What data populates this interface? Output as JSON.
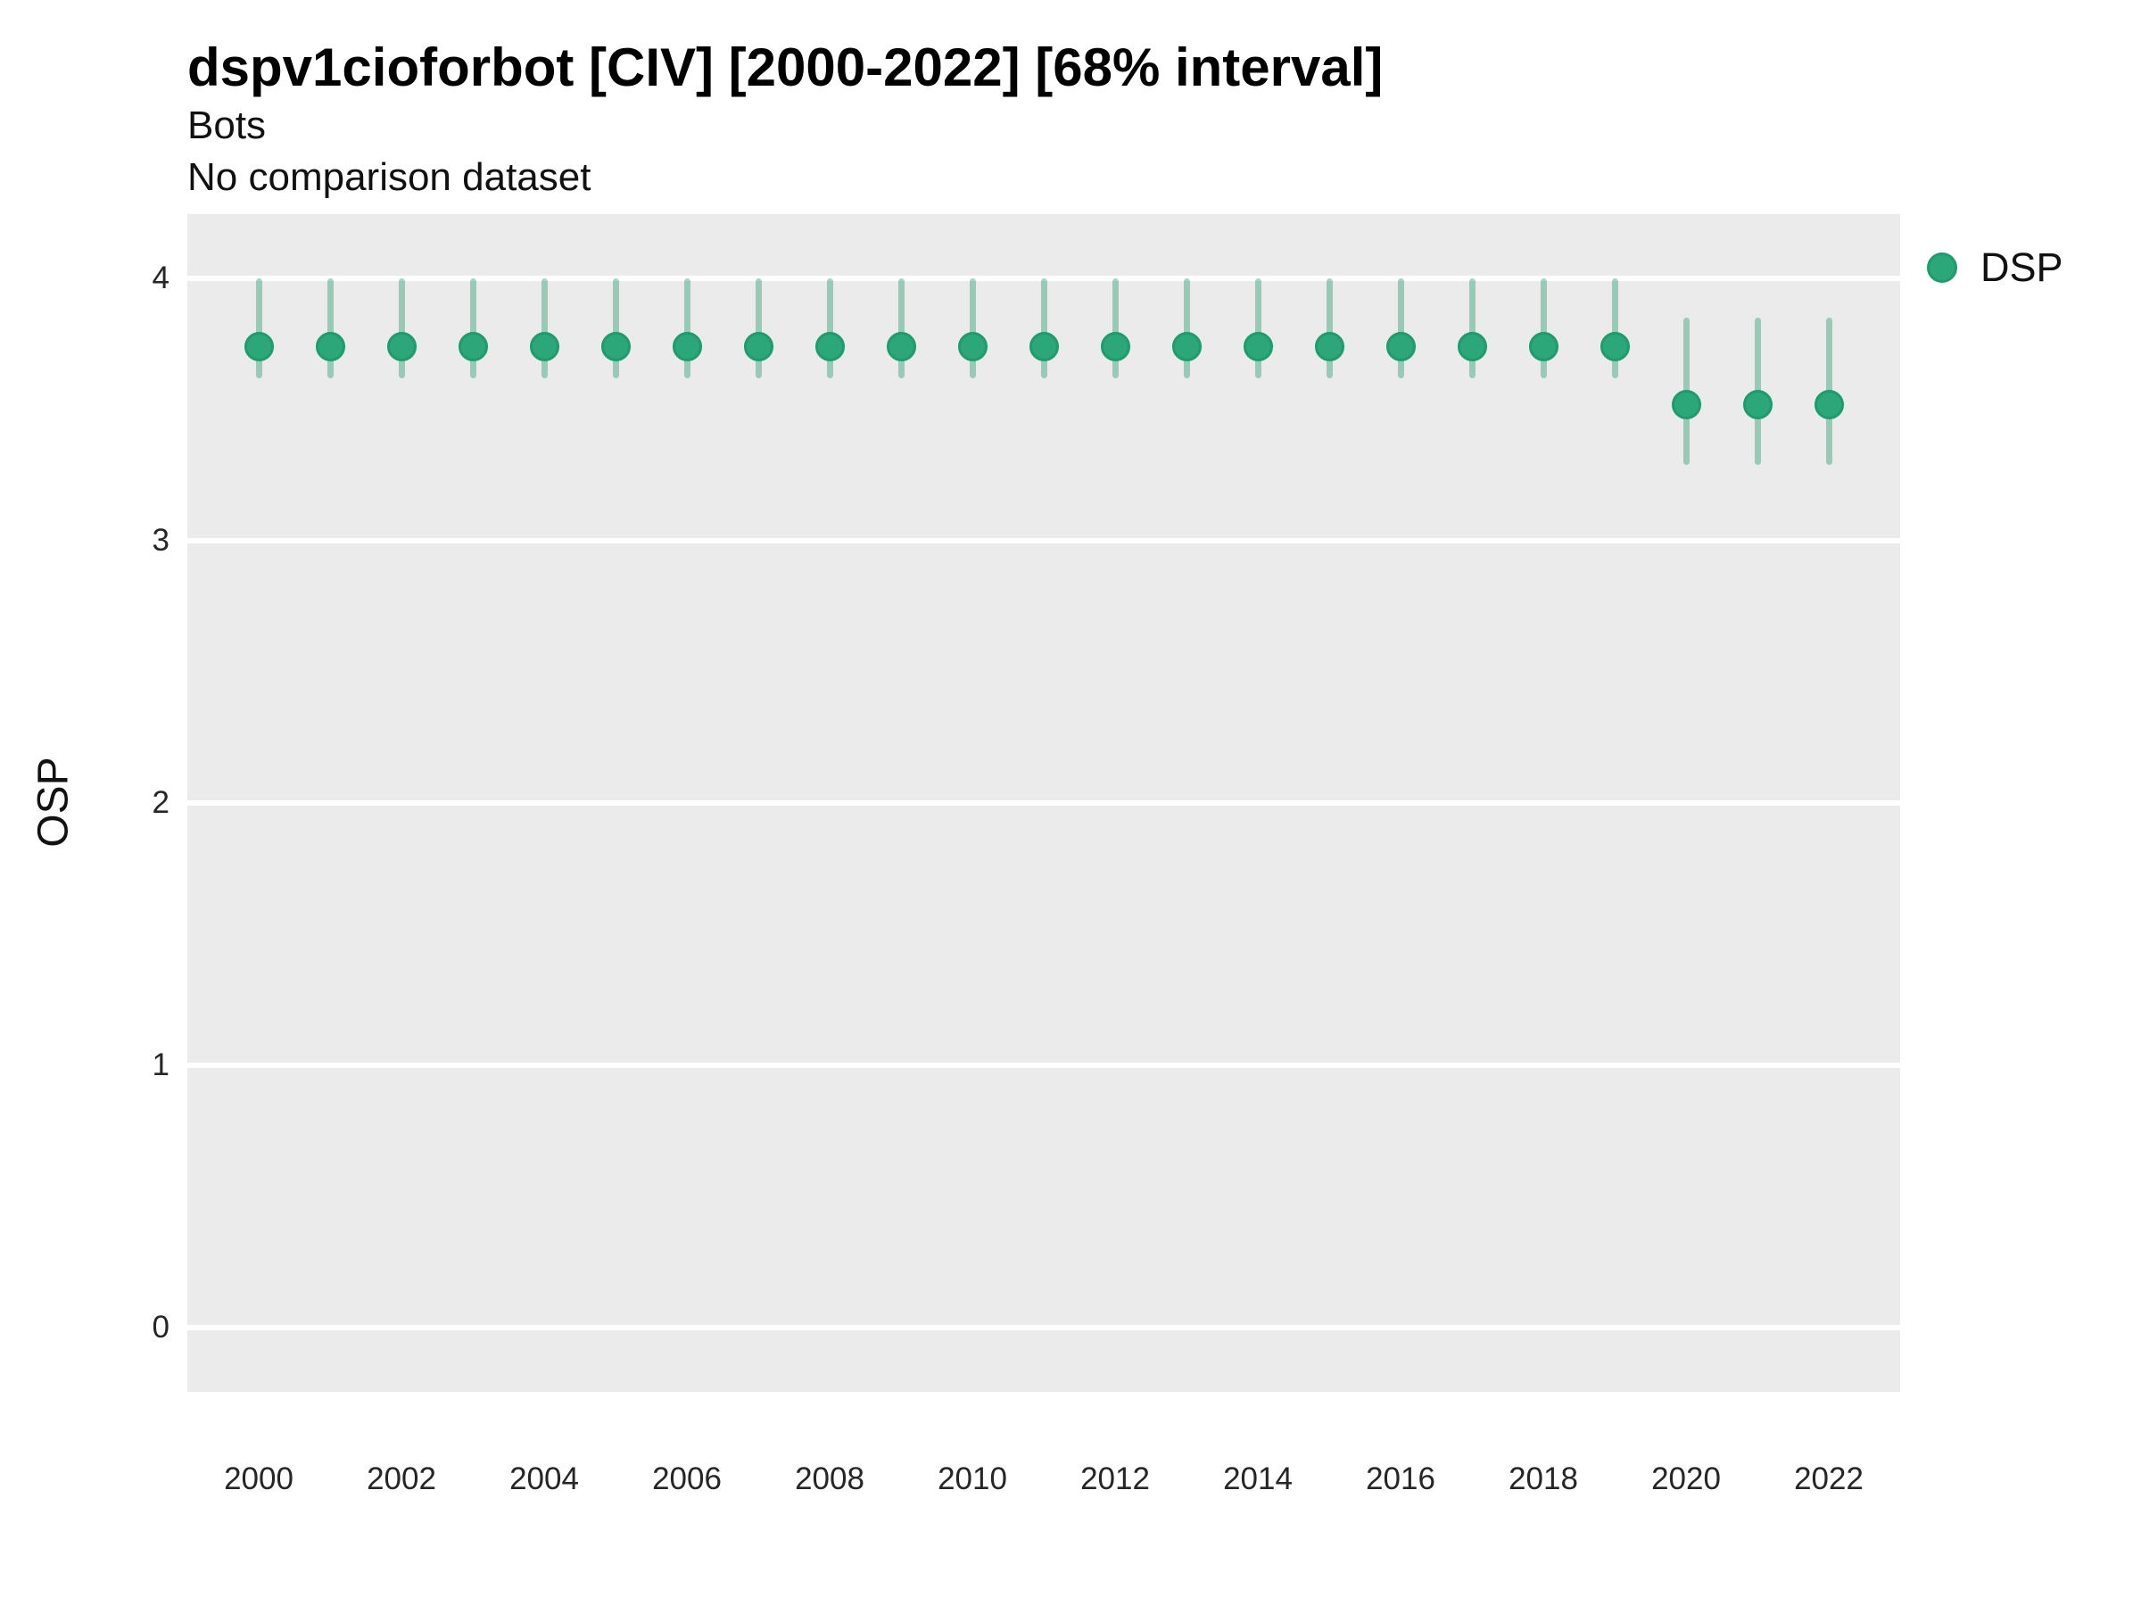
{
  "header": {
    "title": "dspv1cioforbot [CIV] [2000-2022] [68% interval]",
    "subtitle": "Bots",
    "comparison_note": "No comparison dataset"
  },
  "legend": {
    "position": "right-top",
    "items": [
      {
        "label": "DSP",
        "marker": "circle-icon",
        "color": "#2BA77A"
      }
    ]
  },
  "colors": {
    "point_fill": "#2BA77A",
    "point_border": "#1E9C6C",
    "interval_bar": "rgba(43,167,122,0.45)",
    "panel_background": "#EBEBEB",
    "gridline": "#FFFFFF",
    "text": "#111111",
    "tick_text": "#262626"
  },
  "chart_data": {
    "type": "scatter",
    "variant": "pointrange",
    "title": "dspv1cioforbot [CIV] [2000-2022] [68% interval]",
    "subtitle": "Bots",
    "note": "No comparison dataset",
    "interval": "68%",
    "xlabel": "",
    "ylabel": "OSP",
    "grid": "major-horizontal-only",
    "legend_position": "right-top",
    "x": [
      2000,
      2001,
      2002,
      2003,
      2004,
      2005,
      2006,
      2007,
      2008,
      2009,
      2010,
      2011,
      2012,
      2013,
      2014,
      2015,
      2016,
      2017,
      2018,
      2019,
      2020,
      2021,
      2022
    ],
    "series": [
      {
        "name": "DSP",
        "mid": [
          3.74,
          3.74,
          3.74,
          3.74,
          3.74,
          3.74,
          3.74,
          3.74,
          3.74,
          3.74,
          3.74,
          3.74,
          3.74,
          3.74,
          3.74,
          3.74,
          3.74,
          3.74,
          3.74,
          3.74,
          3.52,
          3.52,
          3.52
        ],
        "lo": [
          3.62,
          3.62,
          3.62,
          3.62,
          3.62,
          3.62,
          3.62,
          3.62,
          3.62,
          3.62,
          3.62,
          3.62,
          3.62,
          3.62,
          3.62,
          3.62,
          3.62,
          3.62,
          3.62,
          3.62,
          3.29,
          3.29,
          3.29
        ],
        "hi": [
          4.0,
          4.0,
          4.0,
          4.0,
          4.0,
          4.0,
          4.0,
          4.0,
          4.0,
          4.0,
          4.0,
          4.0,
          4.0,
          4.0,
          4.0,
          4.0,
          4.0,
          4.0,
          4.0,
          4.0,
          3.85,
          3.85,
          3.85
        ]
      }
    ],
    "yticks": [
      0,
      1,
      2,
      3,
      4
    ],
    "xticks": [
      2000,
      2002,
      2004,
      2006,
      2008,
      2010,
      2012,
      2014,
      2016,
      2018,
      2020,
      2022
    ],
    "ylim": [
      -0.245,
      4.245
    ]
  }
}
